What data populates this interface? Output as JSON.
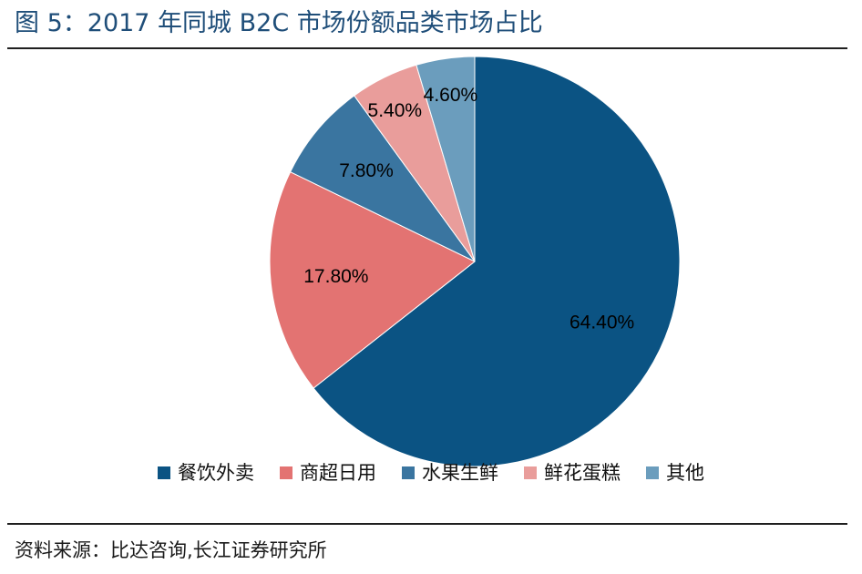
{
  "title": "图 5：2017 年同城 B2C 市场份额品类市场占比",
  "source": "资料来源：比达咨询,长江证券研究所",
  "chart_data": {
    "type": "pie",
    "title": "图 5：2017 年同城 B2C 市场份额品类市场占比",
    "categories": [
      "餐饮外卖",
      "商超日用",
      "水果生鲜",
      "鲜花蛋糕",
      "其他"
    ],
    "values": [
      64.4,
      17.8,
      7.8,
      5.4,
      4.6
    ],
    "labels": [
      "64.40%",
      "17.80%",
      "7.80%",
      "5.40%",
      "4.60%"
    ],
    "colors": [
      "#0b5383",
      "#e37372",
      "#3a75a0",
      "#e99d9b",
      "#6b9dbd"
    ],
    "start_angle": "12 o'clock",
    "direction": "clockwise",
    "legend": "bottom"
  }
}
